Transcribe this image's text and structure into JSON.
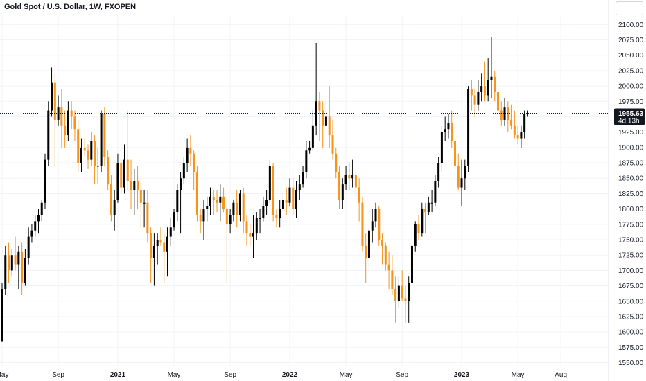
{
  "title": "Gold Spot / U.S. Dollar, 1W, FXOPEN",
  "colors": {
    "up": "#000000",
    "down": "#f7931a",
    "axis_text": "#131722",
    "price_line": "#131722"
  },
  "last_price_label": "1955.63",
  "countdown_label": "4d 13h",
  "chart_data": {
    "type": "candlestick",
    "title": "Gold Spot / U.S. Dollar, 1W, FXOPEN",
    "interval": "1W",
    "ylim": [
      1545,
      2115
    ],
    "y_ticks": [
      1550,
      1575,
      1600,
      1625,
      1650,
      1675,
      1700,
      1725,
      1750,
      1775,
      1800,
      1825,
      1850,
      1875,
      1900,
      1925,
      1950,
      1975,
      2000,
      2025,
      2050,
      2075,
      2100
    ],
    "y_tick_labels": [
      "1550.00",
      "1575.00",
      "1600.00",
      "1625.00",
      "1650.00",
      "1675.00",
      "1700.00",
      "1725.00",
      "1750.00",
      "1775.00",
      "1800.00",
      "1825.00",
      "1850.00",
      "1875.00",
      "1900.00",
      "1925.00",
      "1950.00",
      "1975.00",
      "2000.00",
      "2025.00",
      "2050.00",
      "2075.00",
      "2100.00"
    ],
    "x_ticks": [
      {
        "label": "May",
        "bar": 0,
        "bold": false
      },
      {
        "label": "Sep",
        "bar": 17,
        "bold": false
      },
      {
        "label": "2021",
        "bar": 35,
        "bold": true
      },
      {
        "label": "May",
        "bar": 52,
        "bold": false
      },
      {
        "label": "Sep",
        "bar": 69,
        "bold": false
      },
      {
        "label": "2022",
        "bar": 87,
        "bold": true
      },
      {
        "label": "May",
        "bar": 104,
        "bold": false
      },
      {
        "label": "Sep",
        "bar": 121,
        "bold": false
      },
      {
        "label": "2023",
        "bar": 139,
        "bold": true
      },
      {
        "label": "May",
        "bar": 156,
        "bold": false
      },
      {
        "label": "Aug",
        "bar": 169,
        "bold": false
      }
    ],
    "last_price": 1955.63,
    "grid": true,
    "ohlc": [
      [
        1585,
        1680,
        1585,
        1670
      ],
      [
        1670,
        1740,
        1660,
        1725
      ],
      [
        1725,
        1745,
        1680,
        1700
      ],
      [
        1700,
        1735,
        1690,
        1725
      ],
      [
        1725,
        1755,
        1700,
        1710
      ],
      [
        1710,
        1740,
        1670,
        1730
      ],
      [
        1730,
        1745,
        1660,
        1680
      ],
      [
        1680,
        1735,
        1675,
        1720
      ],
      [
        1720,
        1770,
        1710,
        1755
      ],
      [
        1755,
        1775,
        1745,
        1765
      ],
      [
        1765,
        1790,
        1755,
        1780
      ],
      [
        1780,
        1800,
        1760,
        1790
      ],
      [
        1790,
        1815,
        1780,
        1810
      ],
      [
        1810,
        1890,
        1800,
        1880
      ],
      [
        1880,
        1975,
        1870,
        1960
      ],
      [
        1960,
        2030,
        1950,
        2005
      ],
      [
        2005,
        2020,
        1870,
        1945
      ],
      [
        1945,
        1985,
        1935,
        1965
      ],
      [
        1965,
        1995,
        1900,
        1935
      ],
      [
        1935,
        1960,
        1900,
        1920
      ],
      [
        1920,
        1975,
        1910,
        1960
      ],
      [
        1960,
        1975,
        1930,
        1950
      ],
      [
        1950,
        1960,
        1910,
        1930
      ],
      [
        1930,
        1945,
        1860,
        1875
      ],
      [
        1875,
        1915,
        1860,
        1900
      ],
      [
        1900,
        1915,
        1885,
        1895
      ],
      [
        1895,
        1905,
        1865,
        1880
      ],
      [
        1880,
        1925,
        1870,
        1910
      ],
      [
        1910,
        1920,
        1840,
        1870
      ],
      [
        1870,
        1900,
        1840,
        1870
      ],
      [
        1870,
        1960,
        1860,
        1955
      ],
      [
        1955,
        1965,
        1870,
        1885
      ],
      [
        1885,
        1895,
        1830,
        1840
      ],
      [
        1840,
        1855,
        1780,
        1790
      ],
      [
        1790,
        1830,
        1765,
        1815
      ],
      [
        1815,
        1890,
        1810,
        1875
      ],
      [
        1875,
        1880,
        1825,
        1835
      ],
      [
        1835,
        1905,
        1825,
        1880
      ],
      [
        1880,
        1960,
        1830,
        1845
      ],
      [
        1845,
        1880,
        1800,
        1830
      ],
      [
        1830,
        1865,
        1790,
        1845
      ],
      [
        1845,
        1870,
        1800,
        1830
      ],
      [
        1830,
        1850,
        1770,
        1810
      ],
      [
        1810,
        1830,
        1770,
        1810
      ],
      [
        1810,
        1830,
        1745,
        1760
      ],
      [
        1760,
        1770,
        1680,
        1720
      ],
      [
        1720,
        1760,
        1675,
        1740
      ],
      [
        1740,
        1760,
        1710,
        1750
      ],
      [
        1750,
        1770,
        1740,
        1745
      ],
      [
        1745,
        1760,
        1680,
        1730
      ],
      [
        1730,
        1770,
        1690,
        1755
      ],
      [
        1755,
        1785,
        1740,
        1770
      ],
      [
        1770,
        1800,
        1765,
        1795
      ],
      [
        1795,
        1840,
        1780,
        1830
      ],
      [
        1830,
        1860,
        1760,
        1850
      ],
      [
        1850,
        1885,
        1840,
        1875
      ],
      [
        1875,
        1915,
        1860,
        1900
      ],
      [
        1900,
        1920,
        1870,
        1890
      ],
      [
        1890,
        1895,
        1830,
        1860
      ],
      [
        1860,
        1870,
        1780,
        1790
      ],
      [
        1790,
        1800,
        1760,
        1780
      ],
      [
        1780,
        1815,
        1750,
        1800
      ],
      [
        1800,
        1820,
        1780,
        1805
      ],
      [
        1805,
        1835,
        1790,
        1820
      ],
      [
        1820,
        1830,
        1790,
        1815
      ],
      [
        1815,
        1830,
        1795,
        1810
      ],
      [
        1810,
        1840,
        1780,
        1820
      ],
      [
        1820,
        1835,
        1795,
        1800
      ],
      [
        1800,
        1810,
        1680,
        1775
      ],
      [
        1775,
        1800,
        1760,
        1790
      ],
      [
        1790,
        1815,
        1780,
        1810
      ],
      [
        1810,
        1830,
        1770,
        1790
      ],
      [
        1790,
        1830,
        1780,
        1825
      ],
      [
        1825,
        1835,
        1760,
        1780
      ],
      [
        1780,
        1790,
        1740,
        1760
      ],
      [
        1760,
        1775,
        1740,
        1755
      ],
      [
        1755,
        1790,
        1720,
        1760
      ],
      [
        1760,
        1795,
        1750,
        1785
      ],
      [
        1785,
        1800,
        1760,
        1785
      ],
      [
        1785,
        1820,
        1780,
        1805
      ],
      [
        1805,
        1830,
        1790,
        1815
      ],
      [
        1815,
        1880,
        1810,
        1870
      ],
      [
        1870,
        1875,
        1780,
        1790
      ],
      [
        1790,
        1800,
        1770,
        1785
      ],
      [
        1785,
        1815,
        1770,
        1800
      ],
      [
        1800,
        1825,
        1795,
        1815
      ],
      [
        1815,
        1835,
        1790,
        1810
      ],
      [
        1810,
        1850,
        1805,
        1835
      ],
      [
        1835,
        1850,
        1790,
        1800
      ],
      [
        1800,
        1845,
        1785,
        1830
      ],
      [
        1830,
        1855,
        1815,
        1840
      ],
      [
        1840,
        1870,
        1835,
        1860
      ],
      [
        1860,
        1910,
        1850,
        1895
      ],
      [
        1895,
        1910,
        1890,
        1900
      ],
      [
        1900,
        1960,
        1895,
        1935
      ],
      [
        1935,
        2070,
        1920,
        1975
      ],
      [
        1975,
        1990,
        1910,
        1960
      ],
      [
        1960,
        1975,
        1900,
        1935
      ],
      [
        1935,
        1985,
        1930,
        1950
      ],
      [
        1950,
        2000,
        1900,
        1920
      ],
      [
        1920,
        1945,
        1880,
        1890
      ],
      [
        1890,
        1900,
        1850,
        1860
      ],
      [
        1860,
        1870,
        1800,
        1815
      ],
      [
        1815,
        1850,
        1800,
        1840
      ],
      [
        1840,
        1870,
        1830,
        1855
      ],
      [
        1855,
        1875,
        1830,
        1850
      ],
      [
        1850,
        1880,
        1835,
        1855
      ],
      [
        1855,
        1865,
        1820,
        1835
      ],
      [
        1835,
        1850,
        1780,
        1810
      ],
      [
        1810,
        1820,
        1730,
        1740
      ],
      [
        1740,
        1760,
        1680,
        1720
      ],
      [
        1720,
        1770,
        1700,
        1765
      ],
      [
        1765,
        1800,
        1745,
        1780
      ],
      [
        1780,
        1810,
        1770,
        1800
      ],
      [
        1800,
        1805,
        1740,
        1750
      ],
      [
        1750,
        1760,
        1710,
        1740
      ],
      [
        1740,
        1745,
        1700,
        1710
      ],
      [
        1710,
        1730,
        1670,
        1700
      ],
      [
        1700,
        1725,
        1660,
        1670
      ],
      [
        1670,
        1690,
        1615,
        1650
      ],
      [
        1650,
        1690,
        1640,
        1675
      ],
      [
        1675,
        1700,
        1650,
        1655
      ],
      [
        1655,
        1675,
        1615,
        1650
      ],
      [
        1650,
        1690,
        1615,
        1680
      ],
      [
        1680,
        1745,
        1670,
        1740
      ],
      [
        1740,
        1780,
        1730,
        1775
      ],
      [
        1775,
        1790,
        1750,
        1760
      ],
      [
        1760,
        1810,
        1755,
        1800
      ],
      [
        1800,
        1810,
        1760,
        1795
      ],
      [
        1795,
        1820,
        1790,
        1810
      ],
      [
        1810,
        1830,
        1795,
        1810
      ],
      [
        1810,
        1855,
        1805,
        1845
      ],
      [
        1845,
        1885,
        1835,
        1875
      ],
      [
        1875,
        1935,
        1860,
        1925
      ],
      [
        1925,
        1950,
        1910,
        1930
      ],
      [
        1930,
        1955,
        1915,
        1940
      ],
      [
        1940,
        1960,
        1900,
        1910
      ],
      [
        1910,
        1925,
        1850,
        1870
      ],
      [
        1870,
        1890,
        1830,
        1835
      ],
      [
        1835,
        1880,
        1805,
        1850
      ],
      [
        1850,
        1880,
        1830,
        1870
      ],
      [
        1870,
        2000,
        1860,
        1995
      ],
      [
        1995,
        2010,
        1960,
        1985
      ],
      [
        1985,
        1995,
        1950,
        1970
      ],
      [
        1970,
        2010,
        1960,
        1990
      ],
      [
        1990,
        2020,
        1975,
        2000
      ],
      [
        2000,
        2040,
        1975,
        1985
      ],
      [
        1985,
        2045,
        1975,
        2010
      ],
      [
        2010,
        2080,
        1980,
        2015
      ],
      [
        2015,
        2025,
        1975,
        1990
      ],
      [
        1990,
        2005,
        1945,
        1960
      ],
      [
        1960,
        1975,
        1935,
        1945
      ],
      [
        1945,
        1980,
        1935,
        1965
      ],
      [
        1965,
        1975,
        1925,
        1945
      ],
      [
        1945,
        1970,
        1930,
        1935
      ],
      [
        1935,
        1960,
        1915,
        1920
      ],
      [
        1920,
        1935,
        1905,
        1915
      ],
      [
        1915,
        1935,
        1900,
        1925
      ],
      [
        1925,
        1960,
        1915,
        1955
      ],
      [
        1955,
        1960,
        1950,
        1955.63
      ]
    ]
  }
}
